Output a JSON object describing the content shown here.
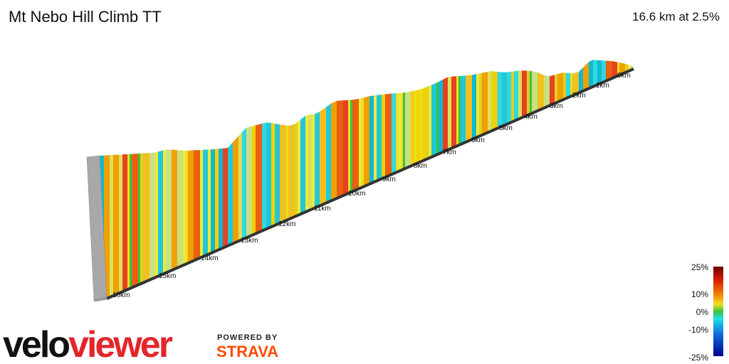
{
  "header": {
    "title": "Mt Nebo Hill Climb TT",
    "summary": "16.6 km at 2.5%"
  },
  "profile": {
    "distance_labels": [
      "0km",
      "1km",
      "2km",
      "3km",
      "4km",
      "5km",
      "6km",
      "7km",
      "8km",
      "9km",
      "10km",
      "11km",
      "12km",
      "13km",
      "14km",
      "15km",
      "16km"
    ]
  },
  "legend": {
    "ticks": [
      "25%",
      "10%",
      "0%",
      "-10%",
      "-25%"
    ]
  },
  "branding": {
    "logo_parts": [
      "velo",
      "viewer"
    ],
    "powered_by": "POWERED BY",
    "partner": "STRAVA"
  }
}
